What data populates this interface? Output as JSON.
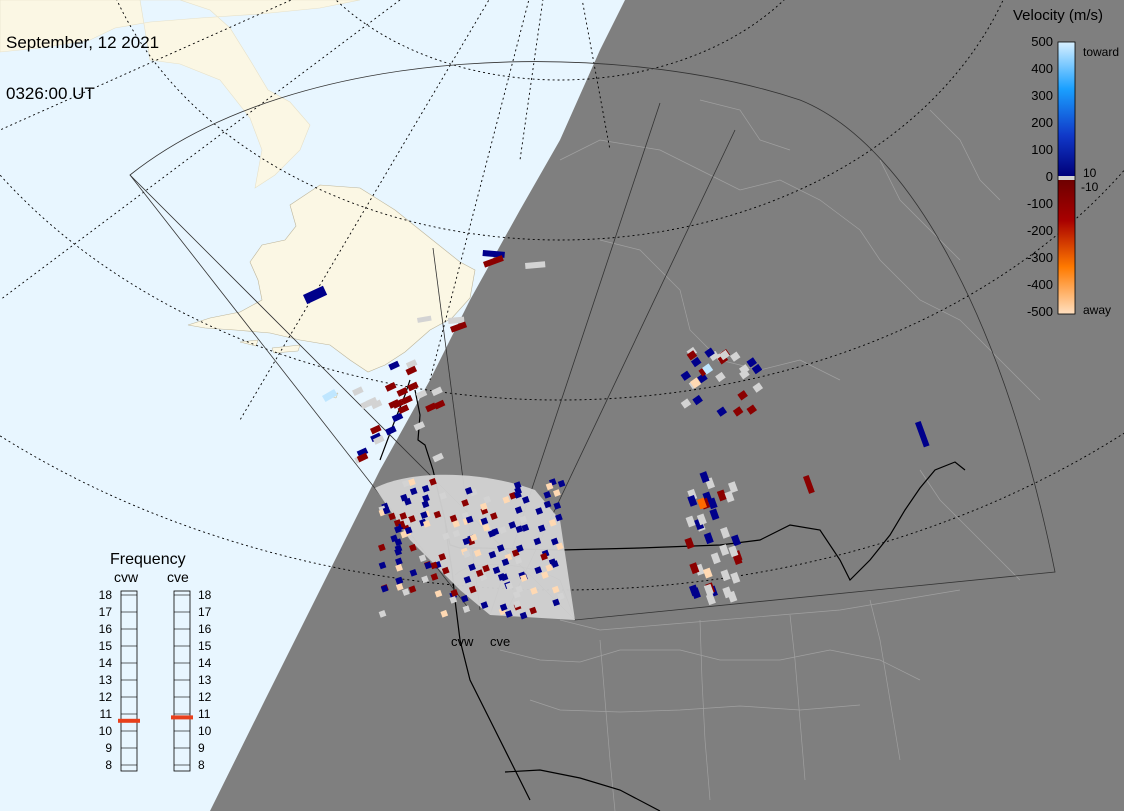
{
  "header": {
    "date": "September, 12 2021",
    "time": "0326:00 UT"
  },
  "velocity_scale": {
    "title": "Velocity (m/s)",
    "ticks": [
      "500",
      "400",
      "300",
      "200",
      "100",
      "0",
      "-100",
      "-200",
      "-300",
      "-400",
      "-500"
    ],
    "toward_label": "toward",
    "away_label": "away",
    "threshold_pos": "10",
    "threshold_neg": "-10",
    "colors": {
      "toward_light": "#bfe6ff",
      "toward_mid": "#1e90ff",
      "toward_dark": "#00008b",
      "ground_scatter": "#d3d3d3",
      "away_dark": "#8b0000",
      "away_mid": "#ff6a00",
      "away_light": "#ffd9b3"
    }
  },
  "frequency_panel": {
    "title": "Frequency",
    "radars": [
      {
        "code": "cvw",
        "frequency_mhz": 10.6
      },
      {
        "code": "cve",
        "frequency_mhz": 10.8
      }
    ],
    "scale": [
      "18",
      "17",
      "16",
      "15",
      "14",
      "13",
      "12",
      "11",
      "10",
      "9",
      "8"
    ],
    "marker_color": "#e8401c"
  },
  "radar_sites": {
    "west_label": "cvw",
    "east_label": "cve"
  },
  "map_colors": {
    "ocean": "#e8f6ff",
    "land": "#fbf7e4",
    "night": "#7f7f7f",
    "boundaries_night": "#a8a8a8",
    "coast": "#000000"
  }
}
